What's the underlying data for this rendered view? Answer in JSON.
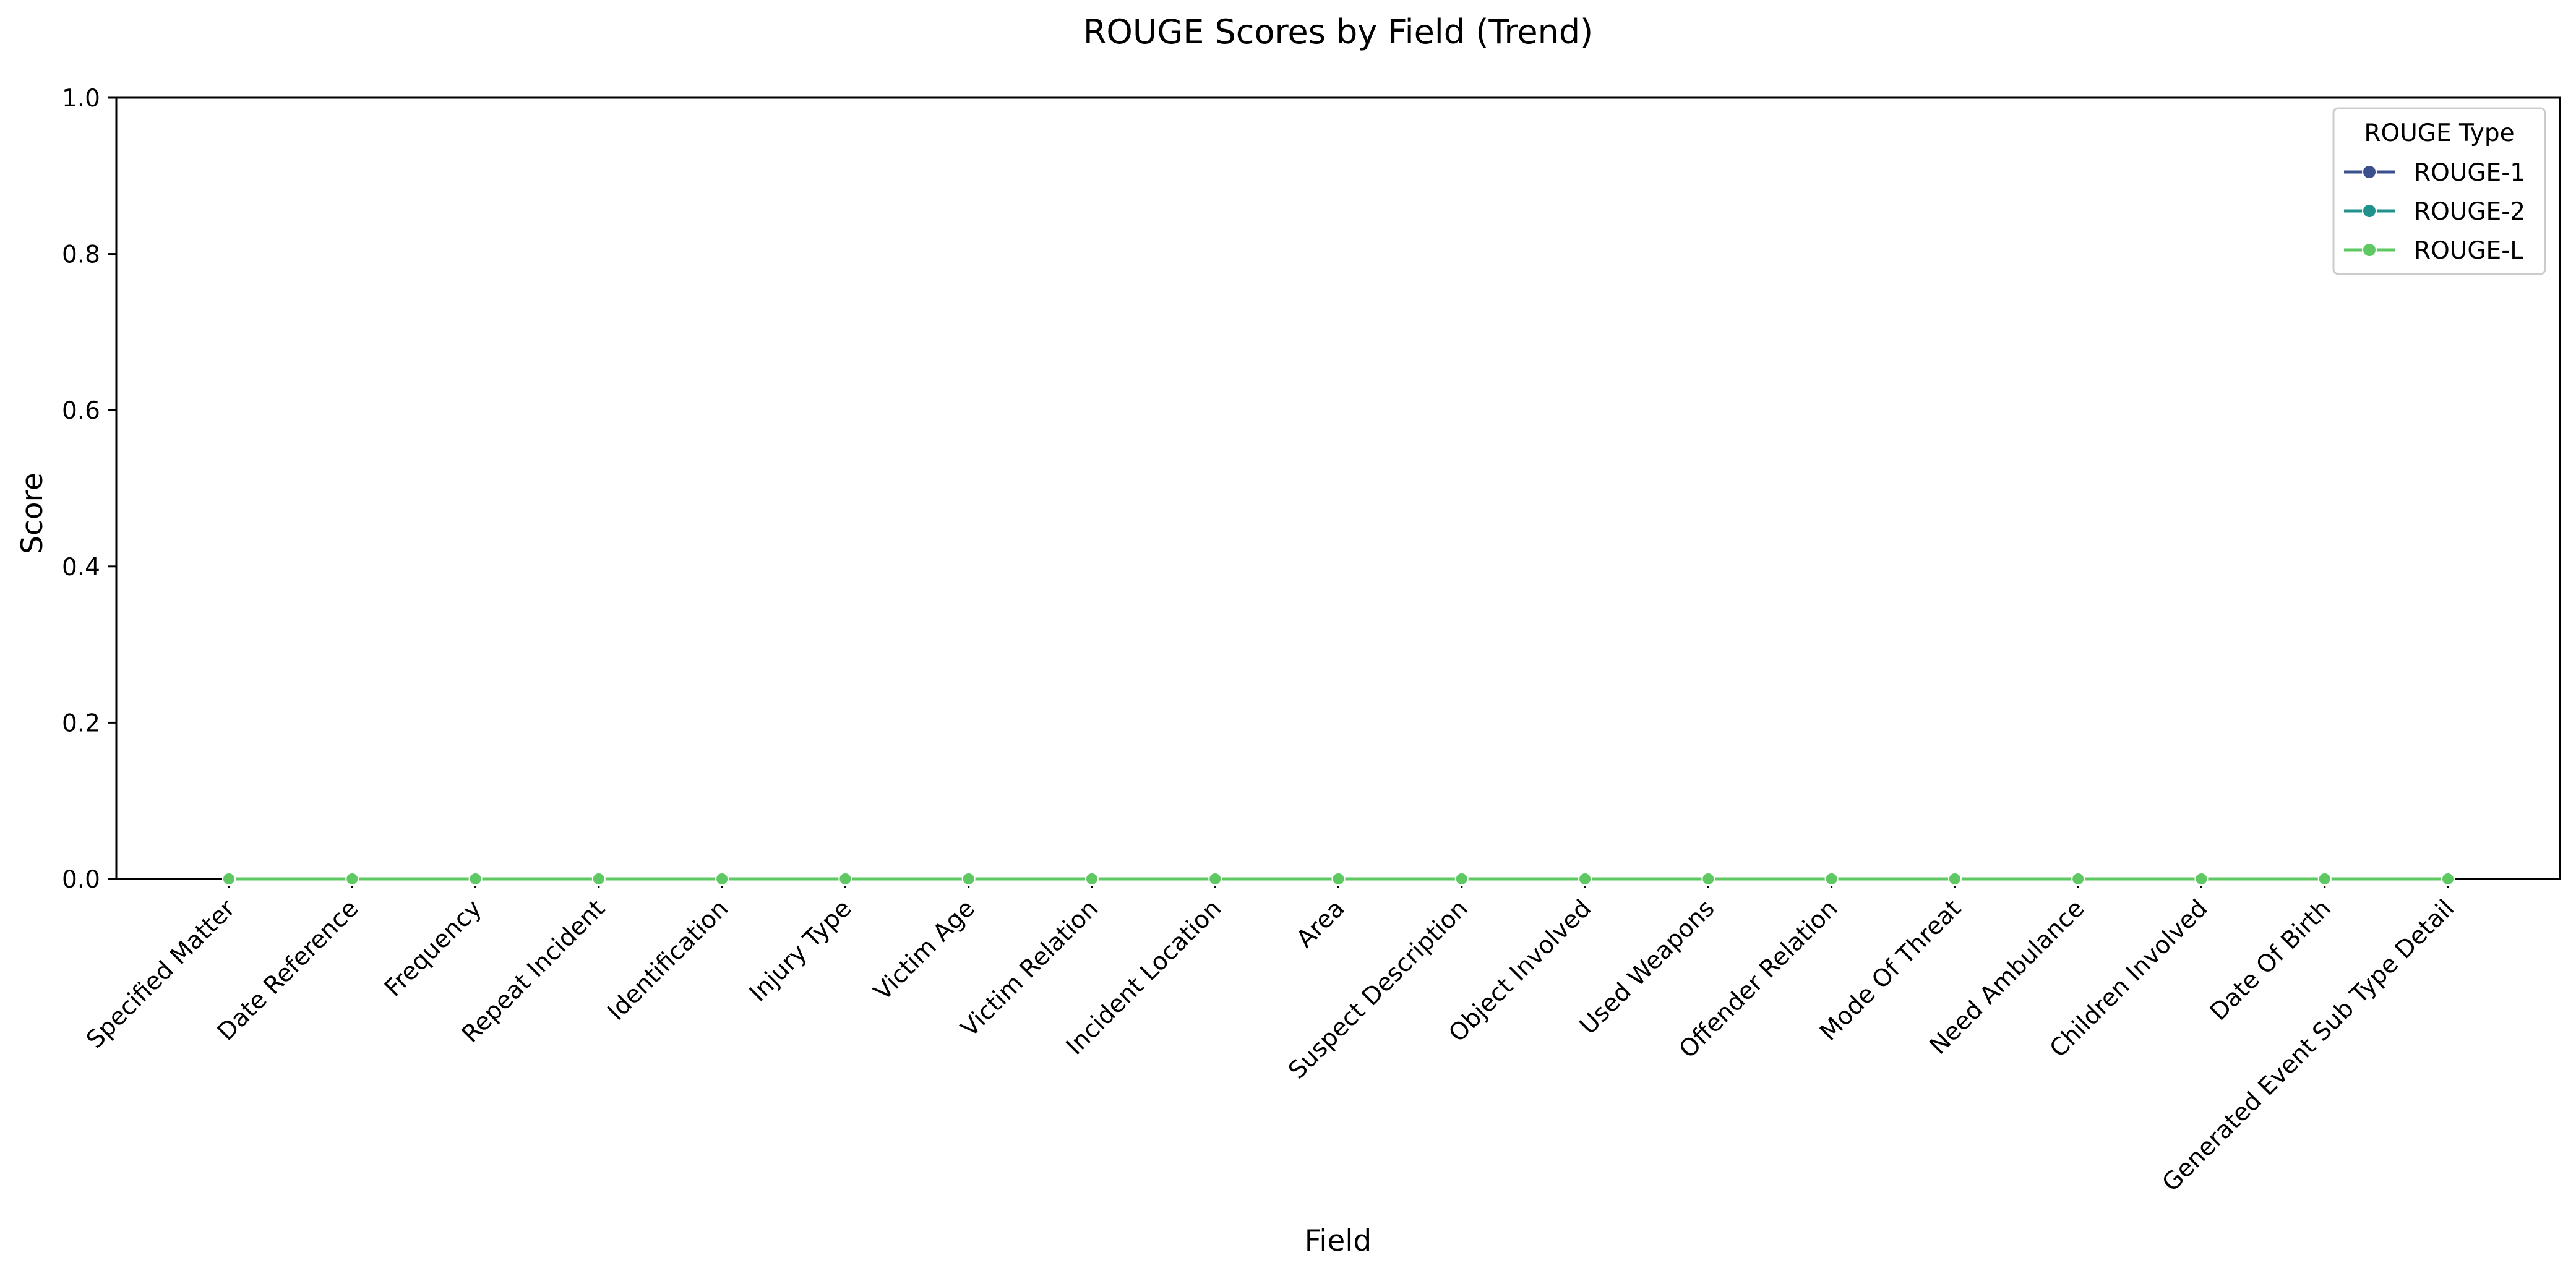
{
  "chart_data": {
    "type": "line",
    "title": "ROUGE Scores by Field (Trend)",
    "xlabel": "Field",
    "ylabel": "Score",
    "ylim": [
      0,
      1
    ],
    "yticks": [
      "0.0",
      "0.2",
      "0.4",
      "0.6",
      "0.8",
      "1.0"
    ],
    "grid": false,
    "legend": {
      "title": "ROUGE Type",
      "placement": "top-right"
    },
    "categories": [
      "Specified Matter",
      "Date Reference",
      "Frequency",
      "Repeat Incident",
      "Identification",
      "Injury Type",
      "Victim Age",
      "Victim Relation",
      "Incident Location",
      "Area",
      "Suspect Description",
      "Object Involved",
      "Used Weapons",
      "Offender Relation",
      "Mode Of Threat",
      "Need Ambulance",
      "Children Involved",
      "Date Of Birth",
      "Generated Event Sub Type Detail"
    ],
    "series": [
      {
        "name": "ROUGE-1",
        "color": "#3b4f8c",
        "values": [
          0,
          0,
          0,
          0,
          0,
          0,
          0,
          0,
          0,
          0,
          0,
          0,
          0,
          0,
          0,
          0,
          0,
          0,
          0
        ]
      },
      {
        "name": "ROUGE-2",
        "color": "#21918c",
        "values": [
          0,
          0,
          0,
          0,
          0,
          0,
          0,
          0,
          0,
          0,
          0,
          0,
          0,
          0,
          0,
          0,
          0,
          0,
          0
        ]
      },
      {
        "name": "ROUGE-L",
        "color": "#5ec962",
        "values": [
          0,
          0,
          0,
          0,
          0,
          0,
          0,
          0,
          0,
          0,
          0,
          0,
          0,
          0,
          0,
          0,
          0,
          0,
          0
        ]
      }
    ]
  }
}
